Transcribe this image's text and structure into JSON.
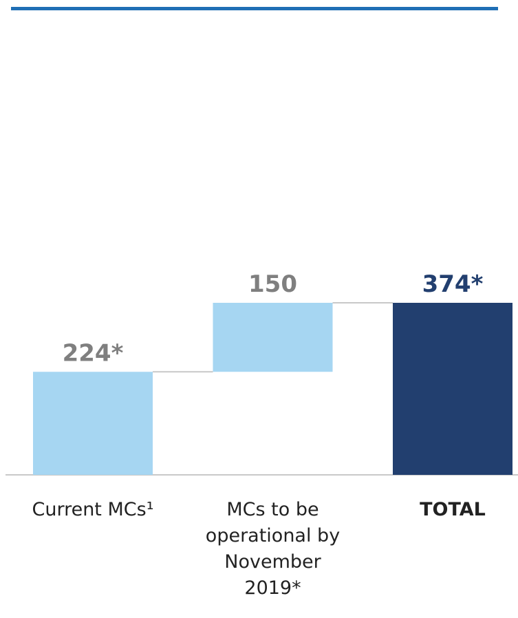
{
  "chart_data": {
    "type": "waterfall",
    "categories": [
      "Current MCs¹",
      "MCs to be operational by November 2019*",
      "TOTAL"
    ],
    "values": [
      224,
      150,
      374
    ],
    "value_labels": [
      "224*",
      "150",
      "374*"
    ],
    "is_total": [
      false,
      false,
      true
    ],
    "colors": [
      "#a6d6f2",
      "#a6d6f2",
      "#223f6f"
    ],
    "label_colors": [
      "#7f7f7f",
      "#7f7f7f",
      "#223f6f"
    ]
  }
}
